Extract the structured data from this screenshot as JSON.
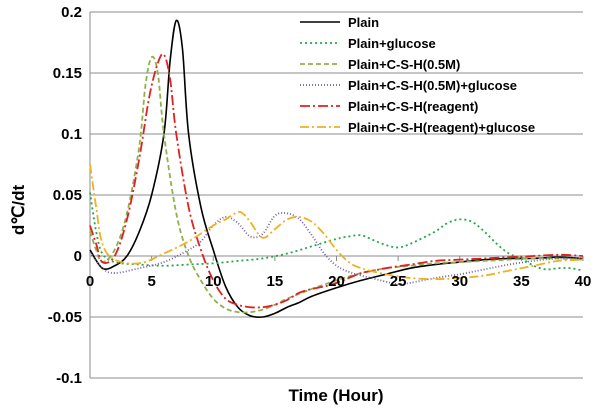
{
  "chart_data": {
    "type": "line",
    "title": "",
    "xlabel": "Time (Hour)",
    "ylabel": "d℃/dt",
    "xlim": [
      0,
      40
    ],
    "ylim": [
      -0.1,
      0.2
    ],
    "x_ticks": [
      "0",
      "5",
      "10",
      "15",
      "20",
      "25",
      "30",
      "35",
      "40"
    ],
    "y_ticks": [
      "-0.1",
      "-0.05",
      "0",
      "0.05",
      "0.1",
      "0.15",
      "0.2"
    ],
    "grid": {
      "horizontal": true,
      "vertical": false
    },
    "legend": {
      "position": "top-right"
    },
    "series": [
      {
        "name": "Plain",
        "color": "#000000",
        "dash": "solid",
        "points": [
          [
            0,
            0.005
          ],
          [
            1,
            -0.01
          ],
          [
            2,
            -0.008
          ],
          [
            3,
            0
          ],
          [
            4,
            0.02
          ],
          [
            5,
            0.05
          ],
          [
            6,
            0.1
          ],
          [
            6.5,
            0.16
          ],
          [
            7,
            0.193
          ],
          [
            7.5,
            0.17
          ],
          [
            8,
            0.1
          ],
          [
            9,
            0.04
          ],
          [
            10,
            0.005
          ],
          [
            11,
            -0.025
          ],
          [
            12,
            -0.042
          ],
          [
            13,
            -0.049
          ],
          [
            14,
            -0.05
          ],
          [
            15,
            -0.047
          ],
          [
            16,
            -0.042
          ],
          [
            17,
            -0.038
          ],
          [
            18,
            -0.033
          ],
          [
            20,
            -0.026
          ],
          [
            22,
            -0.02
          ],
          [
            24,
            -0.015
          ],
          [
            26,
            -0.01
          ],
          [
            28,
            -0.007
          ],
          [
            30,
            -0.005
          ],
          [
            32,
            -0.003
          ],
          [
            34,
            -0.002
          ],
          [
            36,
            -0.002
          ],
          [
            38,
            -0.001
          ],
          [
            40,
            -0.002
          ]
        ]
      },
      {
        "name": "Plain+glucose",
        "color": "#22a84a",
        "dash": "2,3",
        "points": [
          [
            0,
            0.052
          ],
          [
            0.5,
            0.02
          ],
          [
            1,
            0.002
          ],
          [
            2,
            -0.005
          ],
          [
            4,
            -0.007
          ],
          [
            6,
            -0.008
          ],
          [
            8,
            -0.007
          ],
          [
            10,
            -0.006
          ],
          [
            12,
            -0.004
          ],
          [
            14,
            -0.002
          ],
          [
            16,
            0.002
          ],
          [
            18,
            0.008
          ],
          [
            20,
            0.014
          ],
          [
            21,
            0.016
          ],
          [
            22,
            0.017
          ],
          [
            23,
            0.013
          ],
          [
            24,
            0.009
          ],
          [
            25,
            0.007
          ],
          [
            26,
            0.01
          ],
          [
            28,
            0.02
          ],
          [
            29,
            0.027
          ],
          [
            30,
            0.03
          ],
          [
            31,
            0.028
          ],
          [
            32,
            0.02
          ],
          [
            33,
            0.01
          ],
          [
            34,
            0.002
          ],
          [
            35,
            -0.002
          ],
          [
            36,
            -0.008
          ],
          [
            37,
            -0.011
          ],
          [
            38,
            -0.01
          ],
          [
            39,
            -0.01
          ],
          [
            40,
            -0.012
          ]
        ]
      },
      {
        "name": "Plain+C-S-H(0.5M)",
        "color": "#8fb04b",
        "dash": "5,3",
        "points": [
          [
            0,
            0.02
          ],
          [
            0.5,
            0.005
          ],
          [
            1,
            -0.005
          ],
          [
            2,
            0.005
          ],
          [
            3,
            0.035
          ],
          [
            4,
            0.09
          ],
          [
            4.5,
            0.14
          ],
          [
            5,
            0.163
          ],
          [
            5.5,
            0.15
          ],
          [
            6,
            0.1
          ],
          [
            7,
            0.035
          ],
          [
            8,
            0
          ],
          [
            9,
            -0.02
          ],
          [
            10,
            -0.035
          ],
          [
            11,
            -0.043
          ],
          [
            12,
            -0.046
          ],
          [
            13,
            -0.046
          ],
          [
            14,
            -0.044
          ],
          [
            15,
            -0.04
          ],
          [
            16,
            -0.035
          ],
          [
            18,
            -0.027
          ],
          [
            20,
            -0.02
          ],
          [
            22,
            -0.014
          ],
          [
            24,
            -0.01
          ],
          [
            26,
            -0.008
          ],
          [
            28,
            -0.006
          ],
          [
            30,
            -0.005
          ],
          [
            32,
            -0.004
          ],
          [
            34,
            -0.003
          ],
          [
            36,
            -0.002
          ],
          [
            38,
            -0.002
          ],
          [
            40,
            -0.003
          ]
        ]
      },
      {
        "name": "Plain+C-S-H(0.5M)+glucose",
        "color": "#7060a8",
        "dash": "1,2",
        "points": [
          [
            0,
            0.003
          ],
          [
            1,
            -0.01
          ],
          [
            2,
            -0.014
          ],
          [
            4,
            -0.01
          ],
          [
            6,
            -0.005
          ],
          [
            8,
            0.005
          ],
          [
            9,
            0.012
          ],
          [
            10,
            0.025
          ],
          [
            11,
            0.032
          ],
          [
            12,
            0.027
          ],
          [
            13,
            0.016
          ],
          [
            14,
            0.018
          ],
          [
            15,
            0.033
          ],
          [
            16,
            0.035
          ],
          [
            17,
            0.03
          ],
          [
            18,
            0.017
          ],
          [
            19,
            0.002
          ],
          [
            20,
            -0.008
          ],
          [
            21,
            -0.013
          ],
          [
            22,
            -0.016
          ],
          [
            24,
            -0.021
          ],
          [
            25,
            -0.023
          ],
          [
            26,
            -0.022
          ],
          [
            28,
            -0.018
          ],
          [
            30,
            -0.015
          ],
          [
            32,
            -0.011
          ],
          [
            34,
            -0.007
          ],
          [
            36,
            -0.004
          ],
          [
            38,
            -0.002
          ],
          [
            40,
            -0.002
          ]
        ]
      },
      {
        "name": "Plain+C-S-H(reagent)",
        "color": "#e02020",
        "dash": "10,3,2,3",
        "points": [
          [
            0,
            0.025
          ],
          [
            0.5,
            0.01
          ],
          [
            1,
            -0.005
          ],
          [
            2,
            0
          ],
          [
            3,
            0.03
          ],
          [
            4,
            0.08
          ],
          [
            4.8,
            0.13
          ],
          [
            5.5,
            0.158
          ],
          [
            6,
            0.165
          ],
          [
            6.5,
            0.145
          ],
          [
            7,
            0.1
          ],
          [
            8,
            0.04
          ],
          [
            9,
            0.005
          ],
          [
            10,
            -0.02
          ],
          [
            11,
            -0.035
          ],
          [
            12,
            -0.04
          ],
          [
            13,
            -0.042
          ],
          [
            14,
            -0.042
          ],
          [
            15,
            -0.04
          ],
          [
            16,
            -0.036
          ],
          [
            17,
            -0.03
          ],
          [
            18,
            -0.027
          ],
          [
            19,
            -0.025
          ],
          [
            20,
            -0.022
          ],
          [
            21,
            -0.018
          ],
          [
            22,
            -0.014
          ],
          [
            23,
            -0.012
          ],
          [
            24,
            -0.01
          ],
          [
            26,
            -0.007
          ],
          [
            28,
            -0.004
          ],
          [
            30,
            -0.003
          ],
          [
            32,
            -0.002
          ],
          [
            34,
            -0.001
          ],
          [
            36,
            0
          ],
          [
            38,
            0.001
          ],
          [
            40,
            0
          ]
        ]
      },
      {
        "name": "Plain+C-S-H(reagent)+glucose",
        "color": "#f0b020",
        "dash": "9,3,2,3",
        "points": [
          [
            0,
            0.075
          ],
          [
            0.5,
            0.04
          ],
          [
            1,
            0.01
          ],
          [
            2,
            -0.003
          ],
          [
            4,
            -0.006
          ],
          [
            6,
            0.002
          ],
          [
            8,
            0.012
          ],
          [
            10,
            0.025
          ],
          [
            11,
            0.03
          ],
          [
            12,
            0.036
          ],
          [
            12.5,
            0.034
          ],
          [
            13,
            0.028
          ],
          [
            14,
            0.015
          ],
          [
            15,
            0.022
          ],
          [
            16,
            0.03
          ],
          [
            17,
            0.032
          ],
          [
            18,
            0.028
          ],
          [
            19,
            0.018
          ],
          [
            20,
            0.005
          ],
          [
            21,
            -0.005
          ],
          [
            22,
            -0.01
          ],
          [
            24,
            -0.015
          ],
          [
            26,
            -0.018
          ],
          [
            28,
            -0.019
          ],
          [
            30,
            -0.018
          ],
          [
            32,
            -0.016
          ],
          [
            34,
            -0.012
          ],
          [
            36,
            -0.008
          ],
          [
            38,
            -0.004
          ],
          [
            40,
            -0.003
          ]
        ]
      }
    ]
  }
}
